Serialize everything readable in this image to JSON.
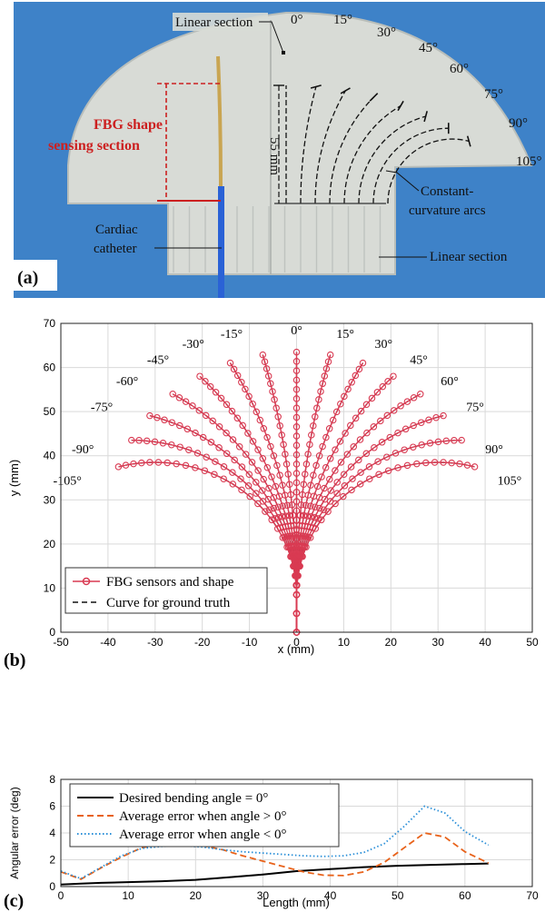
{
  "panel_a": {
    "label": "(a)",
    "annotations": {
      "linear_section_top": "Linear section",
      "fbg_section_line1": "FBG shape",
      "fbg_section_line2": "sensing section",
      "length": "55 mm",
      "cardiac_line1": "Cardiac",
      "cardiac_line2": "catheter",
      "arcs_line1": "Constant-",
      "arcs_line2": "curvature arcs",
      "linear_section_bottom": "Linear section"
    },
    "angle_labels": [
      "0°",
      "15°",
      "30°",
      "45°",
      "60°",
      "75°",
      "90°",
      "105°"
    ],
    "colors": {
      "background": "#3e82c8",
      "plate": "#d8dbd6",
      "red": "#cc2020",
      "catheter": "#2a62d6"
    }
  },
  "chart_data": [
    {
      "type": "line",
      "panel_label": "(b)",
      "xlabel": "x (mm)",
      "ylabel": "y (mm)",
      "xlim": [
        -50,
        50
      ],
      "ylim": [
        0,
        70
      ],
      "xticks": [
        -50,
        -40,
        -30,
        -20,
        -10,
        0,
        10,
        20,
        30,
        40,
        50
      ],
      "yticks": [
        0,
        10,
        20,
        30,
        40,
        50,
        60,
        70
      ],
      "grid": true,
      "legend": {
        "placement": "bottom-left",
        "entries": [
          "FBG sensors and shape",
          "Curve for ground truth"
        ]
      },
      "arc_length_mm": 63.5,
      "linear_length_mm": 8.5,
      "series_angles_deg": [
        -105,
        -90,
        -75,
        -60,
        -45,
        -30,
        -15,
        0,
        15,
        30,
        45,
        60,
        75,
        90,
        105
      ],
      "series_labels": [
        "-105°",
        "-90°",
        "-75°",
        "-60°",
        "-45°",
        "-30°",
        "-15°",
        "0°",
        "15°",
        "30°",
        "45°",
        "60°",
        "75°",
        "90°",
        "105°"
      ],
      "colors": {
        "sensor": "#d93a52",
        "truth": "#111111"
      }
    },
    {
      "type": "line",
      "panel_label": "(c)",
      "xlabel": "Length (mm)",
      "ylabel": "Angular error (deg)",
      "xlim": [
        0,
        70
      ],
      "ylim": [
        0,
        8
      ],
      "xticks": [
        0,
        10,
        20,
        30,
        40,
        50,
        60,
        70
      ],
      "yticks": [
        0,
        2,
        4,
        6,
        8
      ],
      "grid": true,
      "legend": {
        "placement": "top-left"
      },
      "series": [
        {
          "name": "Desired bending angle = 0°",
          "color": "#000000",
          "dash": "solid",
          "x": [
            0,
            3,
            6,
            10,
            15,
            20,
            25,
            30,
            35,
            40,
            45,
            50,
            55,
            60,
            63.5
          ],
          "y": [
            0.15,
            0.22,
            0.28,
            0.33,
            0.4,
            0.5,
            0.7,
            0.9,
            1.15,
            1.3,
            1.45,
            1.55,
            1.62,
            1.68,
            1.72
          ]
        },
        {
          "name": "Average error when angle > 0°",
          "color": "#e8621a",
          "dash": "dashed",
          "x": [
            0,
            3,
            6,
            9,
            12,
            15,
            18,
            21,
            24,
            27,
            30,
            33,
            36,
            39,
            42,
            45,
            48,
            51,
            54,
            57,
            60,
            63.5
          ],
          "y": [
            1.1,
            0.55,
            1.4,
            2.2,
            2.9,
            3.15,
            3.2,
            3.05,
            2.75,
            2.3,
            1.9,
            1.5,
            1.1,
            0.85,
            0.82,
            1.1,
            1.8,
            2.9,
            4.0,
            3.7,
            2.6,
            1.75
          ]
        },
        {
          "name": "Average error when angle < 0°",
          "color": "#2a8fd8",
          "dash": "dotted",
          "x": [
            0,
            3,
            6,
            9,
            12,
            15,
            18,
            21,
            24,
            27,
            30,
            33,
            36,
            39,
            42,
            45,
            48,
            51,
            54,
            57,
            60,
            63.5
          ],
          "y": [
            1.15,
            0.6,
            1.45,
            2.3,
            2.85,
            3.0,
            3.05,
            2.95,
            2.75,
            2.6,
            2.5,
            2.4,
            2.3,
            2.25,
            2.3,
            2.55,
            3.2,
            4.5,
            6.0,
            5.5,
            4.1,
            3.1
          ]
        }
      ]
    }
  ]
}
